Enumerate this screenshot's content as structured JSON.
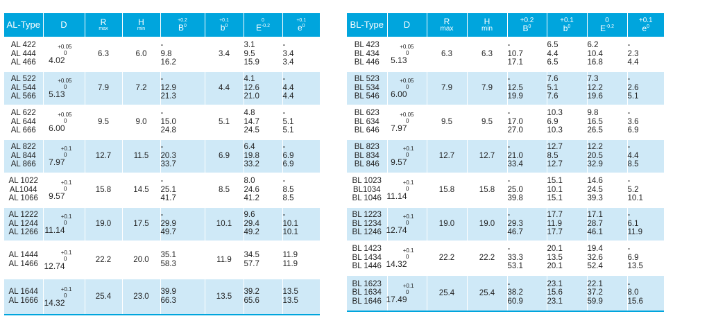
{
  "colors": {
    "header": "#00a5dd",
    "alt_row": "#cfe9f7",
    "row": "#ffffff"
  },
  "tables": [
    {
      "id": "al",
      "headers": {
        "type": "AL-Type",
        "d": "D",
        "r": "R",
        "r_sub": "max",
        "h": "H",
        "h_sub": "min",
        "b_tol": "+0.2",
        "b": "B",
        "b_sup": "0",
        "bs_tol": "+0.1",
        "bs": "b",
        "bs_sup": "0",
        "e_tol": "0",
        "e": "E",
        "e_sup": "-0.2",
        "es_tol": "+0.1",
        "es": "e",
        "es_sup": "0"
      },
      "rows": [
        {
          "types": [
            "AL 422",
            "AL 444",
            "AL 466"
          ],
          "d_upper": "+0.05",
          "d_lower": "0",
          "d": "4.02",
          "r": "6.3",
          "h": "6.0",
          "B": [
            "-",
            "9.8",
            "16.2"
          ],
          "b": "3.4",
          "E": [
            "3.1",
            "9.5",
            "15.9"
          ],
          "e": [
            "-",
            "3.4",
            "3.4"
          ]
        },
        {
          "types": [
            "AL 522",
            "AL 544",
            "AL 566"
          ],
          "d_upper": "+0.05",
          "d_lower": "0",
          "d": "5.13",
          "r": "7.9",
          "h": "7.2",
          "B": [
            "-",
            "12.9",
            "21.3"
          ],
          "b": "4.4",
          "E": [
            "4.1",
            "12.6",
            "21.0"
          ],
          "e": [
            "-",
            "4.4",
            "4.4"
          ]
        },
        {
          "types": [
            "AL 622",
            "AL 644",
            "AL 666"
          ],
          "d_upper": "+0.05",
          "d_lower": "0",
          "d": "6.00",
          "r": "9.5",
          "h": "9.0",
          "B": [
            "-",
            "15.0",
            "24.8"
          ],
          "b": "5.1",
          "E": [
            "4.8",
            "14.7",
            "24.5"
          ],
          "e": [
            "-",
            "5.1",
            "5.1"
          ]
        },
        {
          "types": [
            "AL 822",
            "AL 844",
            "AL 866"
          ],
          "d_upper": "+0.1",
          "d_lower": "0",
          "d": "7.97",
          "r": "12.7",
          "h": "11.5",
          "B": [
            "-",
            "20.3",
            "33.7"
          ],
          "b": "6.9",
          "E": [
            "6.4",
            "19.8",
            "33.2"
          ],
          "e": [
            "-",
            "6.9",
            "6.9"
          ]
        },
        {
          "types": [
            "AL 1022",
            "AL1044",
            "AL 1066"
          ],
          "d_upper": "+0.1",
          "d_lower": "0",
          "d": "9.57",
          "r": "15.8",
          "h": "14.5",
          "B": [
            "-",
            "25.1",
            "41.7"
          ],
          "b": "8.5",
          "E": [
            "8.0",
            "24.6",
            "41.2"
          ],
          "e": [
            "-",
            "8.5",
            "8.5"
          ]
        },
        {
          "types": [
            "AL 1222",
            "AL 1244",
            "AL 1266"
          ],
          "d_upper": "+0.1",
          "d_lower": "0",
          "d": "11.14",
          "r": "19.0",
          "h": "17.5",
          "B": [
            "-",
            "29.9",
            "49.7"
          ],
          "b": "10.1",
          "E": [
            "9.6",
            "29.4",
            "49.2"
          ],
          "e": [
            "-",
            "10.1",
            "10.1"
          ]
        },
        {
          "types": [
            "AL 1444",
            "AL 1466"
          ],
          "d_upper": "+0.1",
          "d_lower": "0",
          "d": "12.74",
          "r": "22.2",
          "h": "20.0",
          "B": [
            "35.1",
            "58.3"
          ],
          "b": "11.9",
          "E": [
            "34.5",
            "57.7"
          ],
          "e": [
            "11.9",
            "11.9"
          ]
        },
        {
          "types": [
            "AL 1644",
            "AL 1666"
          ],
          "d_upper": "+0.1",
          "d_lower": "0",
          "d": "14.32",
          "r": "25.4",
          "h": "23.0",
          "B": [
            "39.9",
            "66.3"
          ],
          "b": "13.5",
          "E": [
            "39.2",
            "65.6"
          ],
          "e": [
            "13.5",
            "13.5"
          ]
        }
      ]
    },
    {
      "id": "bl",
      "headers": {
        "type": "BL-Type",
        "d": "D",
        "r": "R",
        "r_sub": "max",
        "h": "H",
        "h_sub": "min",
        "b_tol": "+0.2",
        "b": "B",
        "b_sup": "0",
        "bs_tol": "+0.1",
        "bs": "b",
        "bs_sup": "0",
        "e_tol": "0",
        "e": "E",
        "e_sup": "-0.2",
        "es_tol": "+0.1",
        "es": "e",
        "es_sup": "0"
      },
      "rows": [
        {
          "types": [
            "BL 423",
            "BL 434",
            "BL 446"
          ],
          "d_upper": "+0.05",
          "d_lower": "0",
          "d": "5.13",
          "r": "6.3",
          "h": "6.3",
          "B": [
            "-",
            "10.7",
            "17.1"
          ],
          "b": [
            "6.5",
            "4.4",
            "6.5"
          ],
          "E": [
            "6.2",
            "10.4",
            "16.8"
          ],
          "e": [
            "-",
            "2.3",
            "4.4"
          ]
        },
        {
          "types": [
            "BL 523",
            "BL 534",
            "BL 546"
          ],
          "d_upper": "+0.05",
          "d_lower": "0",
          "d": "6.00",
          "r": "7.9",
          "h": "7.9",
          "B": [
            "-",
            "12.5",
            "19.9"
          ],
          "b": [
            "7.6",
            "5.1",
            "7.6"
          ],
          "E": [
            "7.3",
            "12.2",
            "19.6"
          ],
          "e": [
            "-",
            "2.6",
            "5.1"
          ]
        },
        {
          "types": [
            "BL 623",
            "BL 634",
            "BL 646"
          ],
          "d_upper": "+0.05",
          "d_lower": "0",
          "d": "7.97",
          "r": "9.5",
          "h": "9.5",
          "B": [
            "-",
            "17.0",
            "27.0"
          ],
          "b": [
            "10.3",
            "6.9",
            "10.3"
          ],
          "E": [
            "9.8",
            "16.5",
            "26.5"
          ],
          "e": [
            "-",
            "3.6",
            "6.9"
          ]
        },
        {
          "types": [
            "BL 823",
            "BL 834",
            "BL 846"
          ],
          "d_upper": "+0.1",
          "d_lower": "0",
          "d": "9.57",
          "r": "12.7",
          "h": "12.7",
          "B": [
            "-",
            "21.0",
            "33.4"
          ],
          "b": [
            "12.7",
            "8.5",
            "12.7"
          ],
          "E": [
            "12.2",
            "20.5",
            "32.9"
          ],
          "e": [
            "-",
            "4.4",
            "8.5"
          ]
        },
        {
          "types": [
            "BL 1023",
            "BL1034",
            "BL 1046"
          ],
          "d_upper": "+0.1",
          "d_lower": "0",
          "d": "11.14",
          "r": "15.8",
          "h": "15.8",
          "B": [
            "-",
            "25.0",
            "39.8"
          ],
          "b": [
            "15.1",
            "10.1",
            "15.1"
          ],
          "E": [
            "14.6",
            "24.5",
            "39.3"
          ],
          "e": [
            "-",
            "5.2",
            "10.1"
          ]
        },
        {
          "types": [
            "BL 1223",
            "BL 1234",
            "BL 1246"
          ],
          "d_upper": "+0.1",
          "d_lower": "0",
          "d": "12.74",
          "r": "19.0",
          "h": "19.0",
          "B": [
            "-",
            "29.3",
            "46.7"
          ],
          "b": [
            "17.7",
            "11.9",
            "17.7"
          ],
          "E": [
            "17.1",
            "28.7",
            "46.1"
          ],
          "e": [
            "-",
            "6.1",
            "11.9"
          ]
        },
        {
          "types": [
            "BL 1423",
            "BL 1434",
            "BL 1446"
          ],
          "d_upper": "+0.1",
          "d_lower": "0",
          "d": "14.32",
          "r": "22.2",
          "h": "22.2",
          "B": [
            "-",
            "33.3",
            "53.1"
          ],
          "b": [
            "20.1",
            "13.5",
            "20.1"
          ],
          "E": [
            "19.4",
            "32.6",
            "52.4"
          ],
          "e": [
            "-",
            "6.9",
            "13.5"
          ]
        },
        {
          "types": [
            "BL 1623",
            "BL 1634",
            "BL 1646"
          ],
          "d_upper": "+0.1",
          "d_lower": "0",
          "d": "17.49",
          "r": "25.4",
          "h": "25.4",
          "B": [
            "-",
            "38.2",
            "60.9"
          ],
          "b": [
            "23.1",
            "15.6",
            "23.1"
          ],
          "E": [
            "22.1",
            "37.2",
            "59.9"
          ],
          "e": [
            "-",
            "8.0",
            "15.6"
          ]
        }
      ]
    }
  ]
}
